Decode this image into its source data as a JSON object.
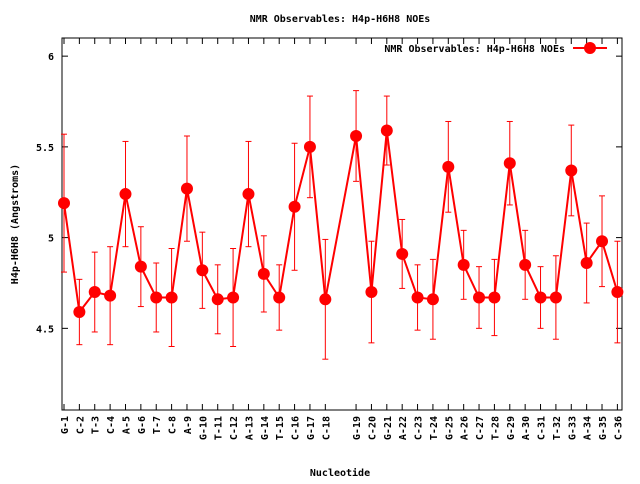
{
  "chart_data": {
    "type": "line",
    "title": "NMR Observables: H4p-H6H8 NOEs",
    "xlabel": "Nucleotide",
    "ylabel": "H4p-H6H8 (Angstroms)",
    "ylim": [
      4.05,
      6.1
    ],
    "xlim": [
      0.87,
      37.3
    ],
    "yticks": [
      4.5,
      5,
      5.5,
      6
    ],
    "ytick_labels": [
      "4.5",
      "5",
      "5.5",
      "6"
    ],
    "grid": false,
    "legend": {
      "label": "NMR Observables: H4p-H6H8 NOEs",
      "placement": "top-right"
    },
    "color": "#ff0000",
    "categories": [
      "G-1",
      "C-2",
      "T-3",
      "C-4",
      "A-5",
      "G-6",
      "T-7",
      "C-8",
      "A-9",
      "G-10",
      "T-11",
      "C-12",
      "A-13",
      "G-14",
      "T-15",
      "C-16",
      "G-17",
      "C-18",
      "G-19",
      "C-20",
      "G-21",
      "A-22",
      "C-23",
      "T-24",
      "G-25",
      "A-26",
      "C-27",
      "T-28",
      "G-29",
      "A-30",
      "C-31",
      "T-32",
      "G-33",
      "A-34",
      "G-35",
      "C-36"
    ],
    "x": [
      1,
      2,
      3,
      4,
      5,
      6,
      7,
      8,
      9,
      10,
      11,
      12,
      13,
      14,
      15,
      16,
      17,
      18,
      20,
      21,
      22,
      23,
      24,
      25,
      26,
      27,
      28,
      29,
      30,
      31,
      32,
      33,
      34,
      35,
      36,
      37
    ],
    "values": [
      5.19,
      4.59,
      4.7,
      4.68,
      5.24,
      4.84,
      4.67,
      4.67,
      5.27,
      4.82,
      4.66,
      4.67,
      5.24,
      4.8,
      4.67,
      5.17,
      5.5,
      4.66,
      5.56,
      4.7,
      5.59,
      4.91,
      4.67,
      4.66,
      5.39,
      4.85,
      4.67,
      4.67,
      5.41,
      4.85,
      4.67,
      4.67,
      5.37,
      4.86,
      4.98,
      4.7
    ],
    "errors": [
      0.38,
      0.18,
      0.22,
      0.27,
      0.29,
      0.22,
      0.19,
      0.27,
      0.29,
      0.21,
      0.19,
      0.27,
      0.29,
      0.21,
      0.18,
      0.35,
      0.28,
      0.33,
      0.25,
      0.28,
      0.19,
      0.19,
      0.18,
      0.22,
      0.25,
      0.19,
      0.17,
      0.21,
      0.23,
      0.19,
      0.17,
      0.23,
      0.25,
      0.22,
      0.25,
      0.28
    ]
  }
}
